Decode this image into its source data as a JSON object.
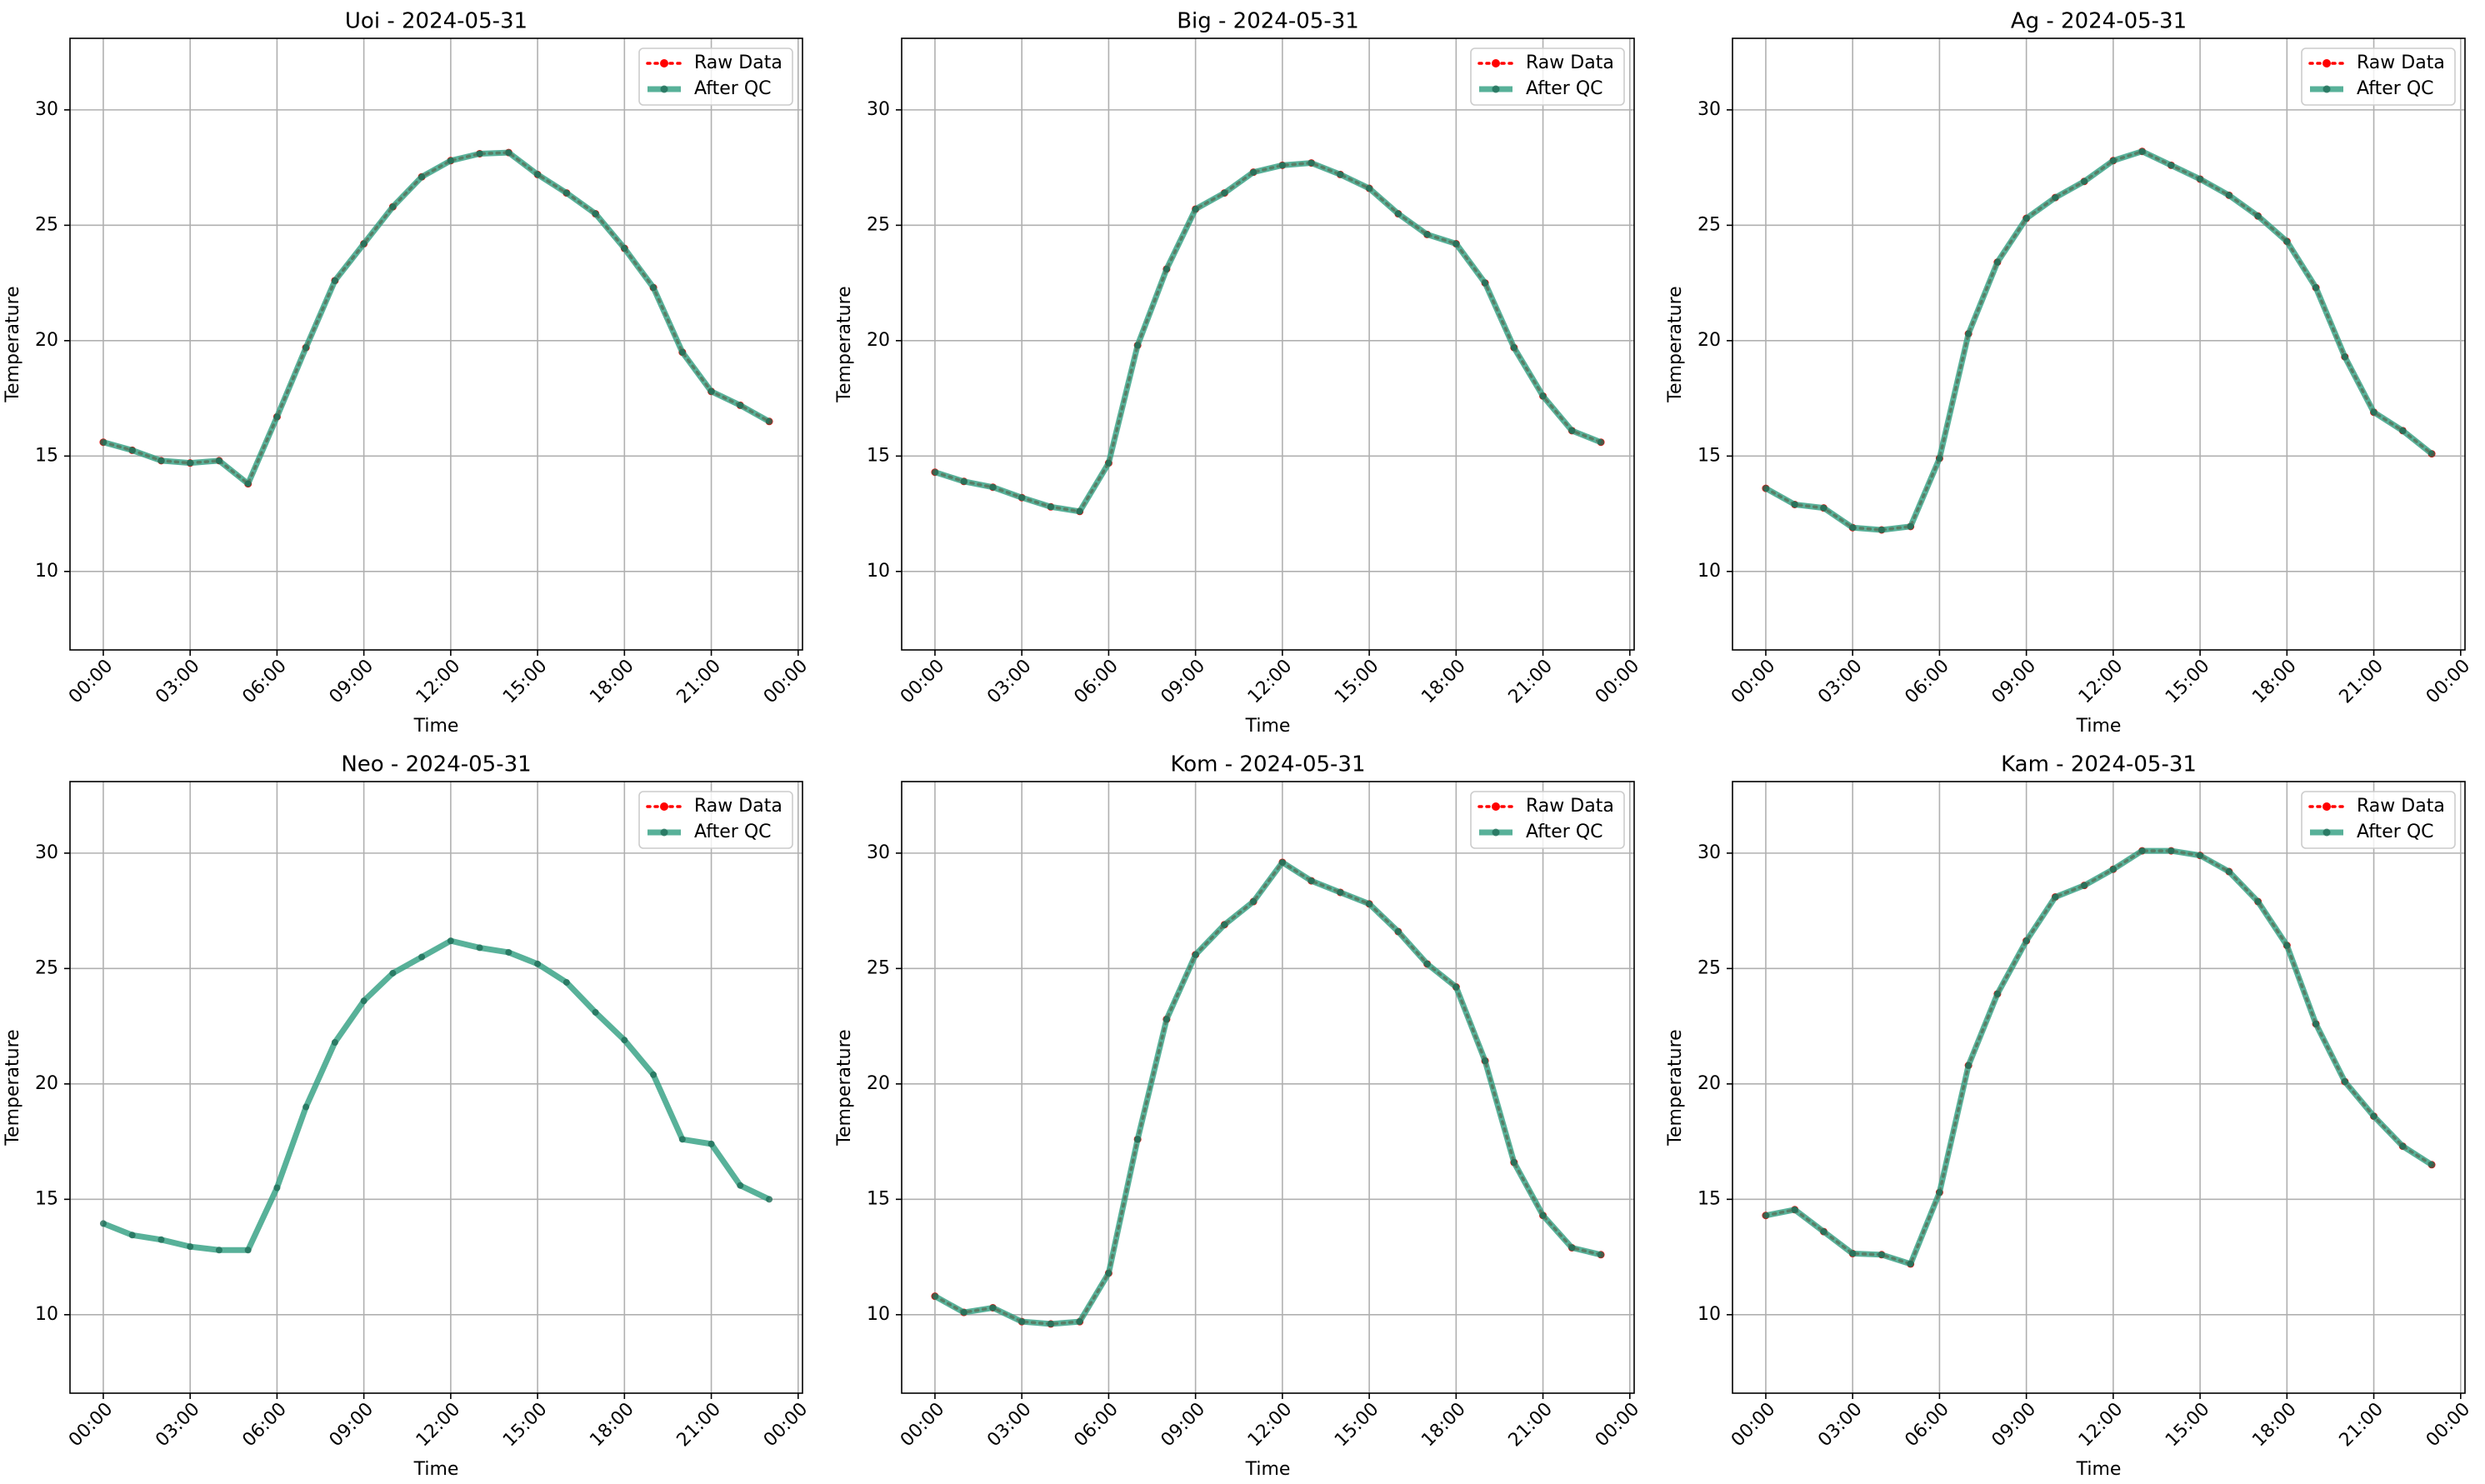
{
  "chart_data": [
    {
      "type": "line",
      "title": "Uoi - 2024-05-31",
      "xlabel": "Time",
      "ylabel": "Temperature",
      "x": [
        0,
        1,
        2,
        3,
        4,
        5,
        6,
        7,
        8,
        9,
        10,
        11,
        12,
        13,
        14,
        15,
        16,
        17,
        18,
        19,
        20,
        21,
        22,
        23
      ],
      "xlim": [
        -1.15,
        24.15
      ],
      "xticks": [
        {
          "value": 0,
          "label": "00:00"
        },
        {
          "value": 3,
          "label": "03:00"
        },
        {
          "value": 6,
          "label": "06:00"
        },
        {
          "value": 9,
          "label": "09:00"
        },
        {
          "value": 12,
          "label": "12:00"
        },
        {
          "value": 15,
          "label": "15:00"
        },
        {
          "value": 18,
          "label": "18:00"
        },
        {
          "value": 21,
          "label": "21:00"
        },
        {
          "value": 24,
          "label": "00:00"
        }
      ],
      "ylim": [
        6.6,
        33.1
      ],
      "yticks": [
        10,
        15,
        20,
        25,
        30
      ],
      "grid": true,
      "legend": "upper right",
      "series": [
        {
          "name": "Raw Data",
          "color": "#ff0000",
          "values": [
            15.6,
            15.25,
            14.8,
            14.7,
            14.8,
            13.8,
            16.7,
            19.7,
            22.6,
            24.2,
            25.8,
            27.1,
            27.8,
            28.1,
            28.15,
            27.2,
            26.4,
            25.5,
            24.0,
            22.3,
            19.5,
            17.8,
            17.2,
            16.5
          ]
        },
        {
          "name": "After QC",
          "color": "#2e9e80",
          "values": [
            15.6,
            15.25,
            14.8,
            14.7,
            14.8,
            13.8,
            16.7,
            19.7,
            22.6,
            24.2,
            25.8,
            27.1,
            27.8,
            28.1,
            28.15,
            27.2,
            26.4,
            25.5,
            24.0,
            22.3,
            19.5,
            17.8,
            17.2,
            16.5
          ]
        }
      ]
    },
    {
      "type": "line",
      "title": "Big - 2024-05-31",
      "xlabel": "Time",
      "ylabel": "Temperature",
      "x": [
        0,
        1,
        2,
        3,
        4,
        5,
        6,
        7,
        8,
        9,
        10,
        11,
        12,
        13,
        14,
        15,
        16,
        17,
        18,
        19,
        20,
        21,
        22,
        23
      ],
      "xlim": [
        -1.15,
        24.15
      ],
      "xticks": [
        {
          "value": 0,
          "label": "00:00"
        },
        {
          "value": 3,
          "label": "03:00"
        },
        {
          "value": 6,
          "label": "06:00"
        },
        {
          "value": 9,
          "label": "09:00"
        },
        {
          "value": 12,
          "label": "12:00"
        },
        {
          "value": 15,
          "label": "15:00"
        },
        {
          "value": 18,
          "label": "18:00"
        },
        {
          "value": 21,
          "label": "21:00"
        },
        {
          "value": 24,
          "label": "00:00"
        }
      ],
      "ylim": [
        6.6,
        33.1
      ],
      "yticks": [
        10,
        15,
        20,
        25,
        30
      ],
      "grid": true,
      "legend": "upper right",
      "series": [
        {
          "name": "Raw Data",
          "color": "#ff0000",
          "values": [
            14.3,
            13.9,
            13.65,
            13.2,
            12.8,
            12.6,
            14.7,
            19.8,
            23.1,
            25.7,
            26.4,
            27.3,
            27.6,
            27.7,
            27.2,
            26.6,
            25.5,
            24.6,
            24.2,
            22.5,
            19.7,
            17.6,
            16.1,
            15.6
          ]
        },
        {
          "name": "After QC",
          "color": "#2e9e80",
          "values": [
            14.3,
            13.9,
            13.65,
            13.2,
            12.8,
            12.6,
            14.7,
            19.8,
            23.1,
            25.7,
            26.4,
            27.3,
            27.6,
            27.7,
            27.2,
            26.6,
            25.5,
            24.6,
            24.2,
            22.5,
            19.7,
            17.6,
            16.1,
            15.6
          ]
        }
      ]
    },
    {
      "type": "line",
      "title": "Ag - 2024-05-31",
      "xlabel": "Time",
      "ylabel": "Temperature",
      "x": [
        0,
        1,
        2,
        3,
        4,
        5,
        6,
        7,
        8,
        9,
        10,
        11,
        12,
        13,
        14,
        15,
        16,
        17,
        18,
        19,
        20,
        21,
        22,
        23
      ],
      "xlim": [
        -1.15,
        24.15
      ],
      "xticks": [
        {
          "value": 0,
          "label": "00:00"
        },
        {
          "value": 3,
          "label": "03:00"
        },
        {
          "value": 6,
          "label": "06:00"
        },
        {
          "value": 9,
          "label": "09:00"
        },
        {
          "value": 12,
          "label": "12:00"
        },
        {
          "value": 15,
          "label": "15:00"
        },
        {
          "value": 18,
          "label": "18:00"
        },
        {
          "value": 21,
          "label": "21:00"
        },
        {
          "value": 24,
          "label": "00:00"
        }
      ],
      "ylim": [
        6.6,
        33.1
      ],
      "yticks": [
        10,
        15,
        20,
        25,
        30
      ],
      "grid": true,
      "legend": "upper right",
      "series": [
        {
          "name": "Raw Data",
          "color": "#ff0000",
          "values": [
            13.6,
            12.9,
            12.75,
            11.9,
            11.8,
            11.95,
            14.9,
            20.3,
            23.4,
            25.3,
            26.2,
            26.9,
            27.8,
            28.2,
            27.6,
            27.0,
            26.3,
            25.4,
            24.3,
            22.3,
            19.3,
            16.9,
            16.1,
            15.1
          ]
        },
        {
          "name": "After QC",
          "color": "#2e9e80",
          "values": [
            13.6,
            12.9,
            12.75,
            11.9,
            11.8,
            11.95,
            14.9,
            20.3,
            23.4,
            25.3,
            26.2,
            26.9,
            27.8,
            28.2,
            27.6,
            27.0,
            26.3,
            25.4,
            24.3,
            22.3,
            19.3,
            16.9,
            16.1,
            15.1
          ]
        }
      ]
    },
    {
      "type": "line",
      "title": "Neo - 2024-05-31",
      "xlabel": "Time",
      "ylabel": "Temperature",
      "x": [
        0,
        1,
        2,
        3,
        4,
        5,
        6,
        7,
        8,
        9,
        10,
        11,
        12,
        13,
        14,
        15,
        16,
        17,
        18,
        19,
        20,
        21,
        22,
        23
      ],
      "xlim": [
        -1.15,
        24.15
      ],
      "xticks": [
        {
          "value": 0,
          "label": "00:00"
        },
        {
          "value": 3,
          "label": "03:00"
        },
        {
          "value": 6,
          "label": "06:00"
        },
        {
          "value": 9,
          "label": "09:00"
        },
        {
          "value": 12,
          "label": "12:00"
        },
        {
          "value": 15,
          "label": "15:00"
        },
        {
          "value": 18,
          "label": "18:00"
        },
        {
          "value": 21,
          "label": "21:00"
        },
        {
          "value": 24,
          "label": "00:00"
        }
      ],
      "ylim": [
        6.6,
        33.1
      ],
      "yticks": [
        10,
        15,
        20,
        25,
        30
      ],
      "grid": true,
      "legend": "upper right",
      "series": [
        {
          "name": "Raw Data",
          "color": "#ff0000",
          "values": [
            null,
            null,
            null,
            null,
            null,
            null,
            null,
            null,
            null,
            null,
            null,
            null,
            null,
            null,
            null,
            null,
            null,
            null,
            null,
            null,
            null,
            null,
            null,
            null
          ]
        },
        {
          "name": "After QC",
          "color": "#2e9e80",
          "values": [
            13.95,
            13.45,
            13.25,
            12.95,
            12.8,
            12.8,
            15.5,
            19.0,
            21.8,
            23.6,
            24.8,
            25.5,
            26.2,
            25.9,
            25.7,
            25.2,
            24.4,
            23.1,
            21.9,
            20.4,
            17.6,
            17.4,
            15.6,
            15.0
          ]
        }
      ]
    },
    {
      "type": "line",
      "title": "Kom - 2024-05-31",
      "xlabel": "Time",
      "ylabel": "Temperature",
      "x": [
        0,
        1,
        2,
        3,
        4,
        5,
        6,
        7,
        8,
        9,
        10,
        11,
        12,
        13,
        14,
        15,
        16,
        17,
        18,
        19,
        20,
        21,
        22,
        23
      ],
      "xlim": [
        -1.15,
        24.15
      ],
      "xticks": [
        {
          "value": 0,
          "label": "00:00"
        },
        {
          "value": 3,
          "label": "03:00"
        },
        {
          "value": 6,
          "label": "06:00"
        },
        {
          "value": 9,
          "label": "09:00"
        },
        {
          "value": 12,
          "label": "12:00"
        },
        {
          "value": 15,
          "label": "15:00"
        },
        {
          "value": 18,
          "label": "18:00"
        },
        {
          "value": 21,
          "label": "21:00"
        },
        {
          "value": 24,
          "label": "00:00"
        }
      ],
      "ylim": [
        6.6,
        33.1
      ],
      "yticks": [
        10,
        15,
        20,
        25,
        30
      ],
      "grid": true,
      "legend": "upper right",
      "series": [
        {
          "name": "Raw Data",
          "color": "#ff0000",
          "values": [
            10.8,
            10.1,
            10.3,
            9.7,
            9.6,
            9.7,
            11.8,
            17.6,
            22.8,
            25.6,
            26.9,
            27.9,
            29.6,
            28.8,
            28.3,
            27.8,
            26.6,
            25.2,
            24.2,
            21.0,
            16.6,
            14.3,
            12.9,
            12.6
          ]
        },
        {
          "name": "After QC",
          "color": "#2e9e80",
          "values": [
            10.8,
            10.1,
            10.3,
            9.7,
            9.6,
            9.7,
            11.8,
            17.6,
            22.8,
            25.6,
            26.9,
            27.9,
            29.6,
            28.8,
            28.3,
            27.8,
            26.6,
            25.2,
            24.2,
            21.0,
            16.6,
            14.3,
            12.9,
            12.6
          ]
        }
      ]
    },
    {
      "type": "line",
      "title": "Kam - 2024-05-31",
      "xlabel": "Time",
      "ylabel": "Temperature",
      "x": [
        0,
        1,
        2,
        3,
        4,
        5,
        6,
        7,
        8,
        9,
        10,
        11,
        12,
        13,
        14,
        15,
        16,
        17,
        18,
        19,
        20,
        21,
        22,
        23
      ],
      "xlim": [
        -1.15,
        24.15
      ],
      "xticks": [
        {
          "value": 0,
          "label": "00:00"
        },
        {
          "value": 3,
          "label": "03:00"
        },
        {
          "value": 6,
          "label": "06:00"
        },
        {
          "value": 9,
          "label": "09:00"
        },
        {
          "value": 12,
          "label": "12:00"
        },
        {
          "value": 15,
          "label": "15:00"
        },
        {
          "value": 18,
          "label": "18:00"
        },
        {
          "value": 21,
          "label": "21:00"
        },
        {
          "value": 24,
          "label": "00:00"
        }
      ],
      "ylim": [
        6.6,
        33.1
      ],
      "yticks": [
        10,
        15,
        20,
        25,
        30
      ],
      "grid": true,
      "legend": "upper right",
      "series": [
        {
          "name": "Raw Data",
          "color": "#ff0000",
          "values": [
            14.3,
            14.55,
            13.6,
            12.65,
            12.6,
            12.2,
            15.3,
            20.8,
            23.9,
            26.2,
            28.1,
            28.6,
            29.3,
            30.1,
            30.1,
            29.9,
            29.2,
            27.9,
            26.0,
            22.6,
            20.1,
            18.6,
            17.3,
            16.5
          ]
        },
        {
          "name": "After QC",
          "color": "#2e9e80",
          "values": [
            14.3,
            14.55,
            13.6,
            12.65,
            12.6,
            12.2,
            15.3,
            20.8,
            23.9,
            26.2,
            28.1,
            28.6,
            29.3,
            30.1,
            30.1,
            29.9,
            29.2,
            27.9,
            26.0,
            22.6,
            20.1,
            18.6,
            17.3,
            16.5
          ]
        }
      ]
    }
  ]
}
